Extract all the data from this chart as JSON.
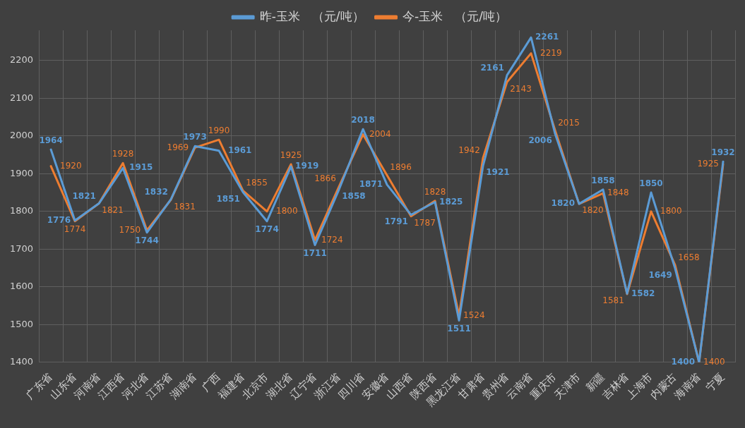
{
  "chart_data": {
    "type": "line",
    "categories": [
      "广东省",
      "山东省",
      "河南省",
      "江西省",
      "河北省",
      "江苏省",
      "湖南省",
      "广西",
      "福建省",
      "北京市",
      "湖北省",
      "辽宁省",
      "浙江省",
      "四川省",
      "安徽省",
      "山西省",
      "陕西省",
      "黑龙江省",
      "甘肃省",
      "贵州省",
      "云南省",
      "重庆市",
      "天津市",
      "新疆",
      "吉林省",
      "上海市",
      "内蒙古",
      "海南省",
      "宁夏"
    ],
    "series": [
      {
        "name": "昨-玉米　（元/吨）",
        "color": "#5b9bd5",
        "values": [
          1964,
          1776,
          1821,
          1915,
          1744,
          1832,
          1973,
          1961,
          1851,
          1774,
          1919,
          1711,
          1858,
          2018,
          1871,
          1791,
          1825,
          1511,
          1921,
          2161,
          2261,
          2006,
          1820,
          1858,
          1582,
          1850,
          1649,
          1400,
          1932
        ]
      },
      {
        "name": "今-玉米　（元/吨）",
        "color": "#ed7d31",
        "values": [
          1920,
          1774,
          1821,
          1928,
          1750,
          1831,
          1969,
          1990,
          1855,
          1800,
          1925,
          1724,
          1866,
          2004,
          1896,
          1787,
          1828,
          1524,
          1942,
          2143,
          2219,
          2015,
          1820,
          1848,
          1581,
          1800,
          1658,
          1400,
          1925
        ]
      }
    ],
    "ylim": [
      1400,
      2280
    ],
    "yticks": [
      1400,
      1500,
      1600,
      1700,
      1800,
      1900,
      2000,
      2100,
      2200
    ],
    "grid": true,
    "legend": "top",
    "marker": "none",
    "line_style": "solid",
    "data_labels": true
  }
}
